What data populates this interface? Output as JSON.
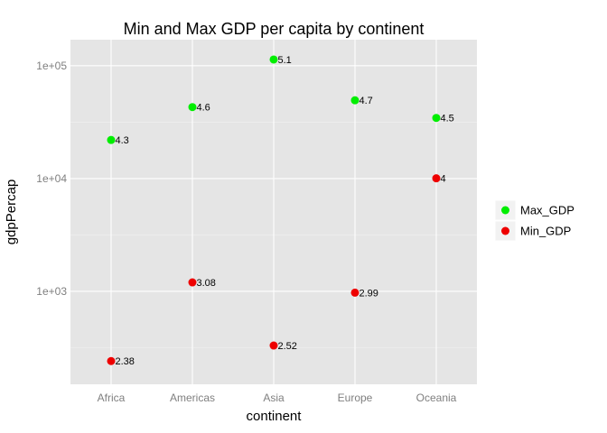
{
  "chart_data": {
    "type": "scatter",
    "title": "Min and Max GDP per capita by continent",
    "xlabel": "continent",
    "ylabel": "gdpPercap",
    "y_scale": "log10",
    "ylim": [
      150,
      170000
    ],
    "grid": true,
    "legend_position": "right",
    "categories": [
      "Africa",
      "Americas",
      "Asia",
      "Europe",
      "Oceania"
    ],
    "y_ticks": [
      {
        "value": 1000,
        "label": "1e+03"
      },
      {
        "value": 10000,
        "label": "1e+04"
      },
      {
        "value": 100000,
        "label": "1e+05"
      }
    ],
    "series": [
      {
        "name": "Max_GDP",
        "color": "#00ee00",
        "values": [
          21950,
          42950,
          113500,
          49360,
          34440
        ],
        "labels": [
          "4.3",
          "4.6",
          "5.1",
          "4.7",
          "4.5"
        ]
      },
      {
        "name": "Min_GDP",
        "color": "#ee0000",
        "values": [
          241,
          1201,
          331,
          974,
          10040
        ],
        "labels": [
          "2.38",
          "3.08",
          "2.52",
          "2.99",
          "4"
        ]
      }
    ]
  }
}
